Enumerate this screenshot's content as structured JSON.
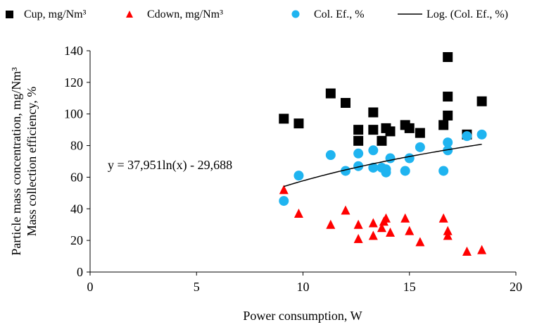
{
  "chart_data": {
    "type": "scatter",
    "xlabel": "Power consumption, W",
    "ylabel_lines": [
      "Particle mass concentration, mg/Nm³",
      "Mass collection efficiency, %"
    ],
    "xlim": [
      0,
      20
    ],
    "ylim": [
      0,
      140
    ],
    "xticks": [
      0,
      5,
      10,
      15,
      20
    ],
    "yticks": [
      0,
      20,
      40,
      60,
      80,
      100,
      120,
      140
    ],
    "grid": false,
    "legend_position": "top",
    "series": [
      {
        "name": "Cup, mg/Nm³",
        "marker": "square",
        "color": "#000000",
        "points": [
          [
            9.1,
            97
          ],
          [
            9.8,
            94
          ],
          [
            11.3,
            113
          ],
          [
            12.0,
            107
          ],
          [
            12.6,
            90
          ],
          [
            12.6,
            83
          ],
          [
            13.3,
            101
          ],
          [
            13.3,
            90
          ],
          [
            13.7,
            83
          ],
          [
            13.9,
            91
          ],
          [
            14.1,
            89
          ],
          [
            14.8,
            93
          ],
          [
            15.0,
            91
          ],
          [
            15.5,
            88
          ],
          [
            16.6,
            93
          ],
          [
            16.8,
            136
          ],
          [
            16.8,
            111
          ],
          [
            16.8,
            99
          ],
          [
            17.7,
            87
          ],
          [
            18.4,
            108
          ]
        ]
      },
      {
        "name": "Cdown, mg/Nm³",
        "marker": "triangle",
        "color": "#ff0000",
        "points": [
          [
            9.1,
            52
          ],
          [
            9.8,
            37
          ],
          [
            11.3,
            30
          ],
          [
            12.0,
            39
          ],
          [
            12.6,
            30
          ],
          [
            12.6,
            21
          ],
          [
            13.3,
            31
          ],
          [
            13.3,
            23
          ],
          [
            13.7,
            28
          ],
          [
            13.8,
            32
          ],
          [
            13.9,
            34
          ],
          [
            14.1,
            25
          ],
          [
            14.8,
            34
          ],
          [
            15.0,
            26
          ],
          [
            15.5,
            19
          ],
          [
            16.6,
            34
          ],
          [
            16.8,
            26
          ],
          [
            16.8,
            23
          ],
          [
            17.7,
            13
          ],
          [
            18.4,
            14
          ]
        ]
      },
      {
        "name": "Col. Ef., %",
        "marker": "circle",
        "color": "#1fb4f0",
        "points": [
          [
            9.1,
            45
          ],
          [
            9.8,
            61
          ],
          [
            11.3,
            74
          ],
          [
            12.0,
            64
          ],
          [
            12.6,
            75
          ],
          [
            12.6,
            67
          ],
          [
            13.3,
            66
          ],
          [
            13.3,
            77
          ],
          [
            13.7,
            66
          ],
          [
            13.9,
            65
          ],
          [
            13.9,
            63
          ],
          [
            14.1,
            72
          ],
          [
            14.8,
            64
          ],
          [
            15.0,
            72
          ],
          [
            15.5,
            79
          ],
          [
            16.6,
            64
          ],
          [
            16.8,
            77
          ],
          [
            16.8,
            82
          ],
          [
            17.7,
            86
          ],
          [
            18.4,
            87
          ]
        ]
      }
    ],
    "trendline": {
      "name": "Log. (Col. Ef., %)",
      "a": 37.951,
      "b": -29.688,
      "x_range": [
        9.1,
        18.4
      ],
      "color": "#000000",
      "equation_label": "y = 37,951ln(x) - 29,688"
    }
  }
}
